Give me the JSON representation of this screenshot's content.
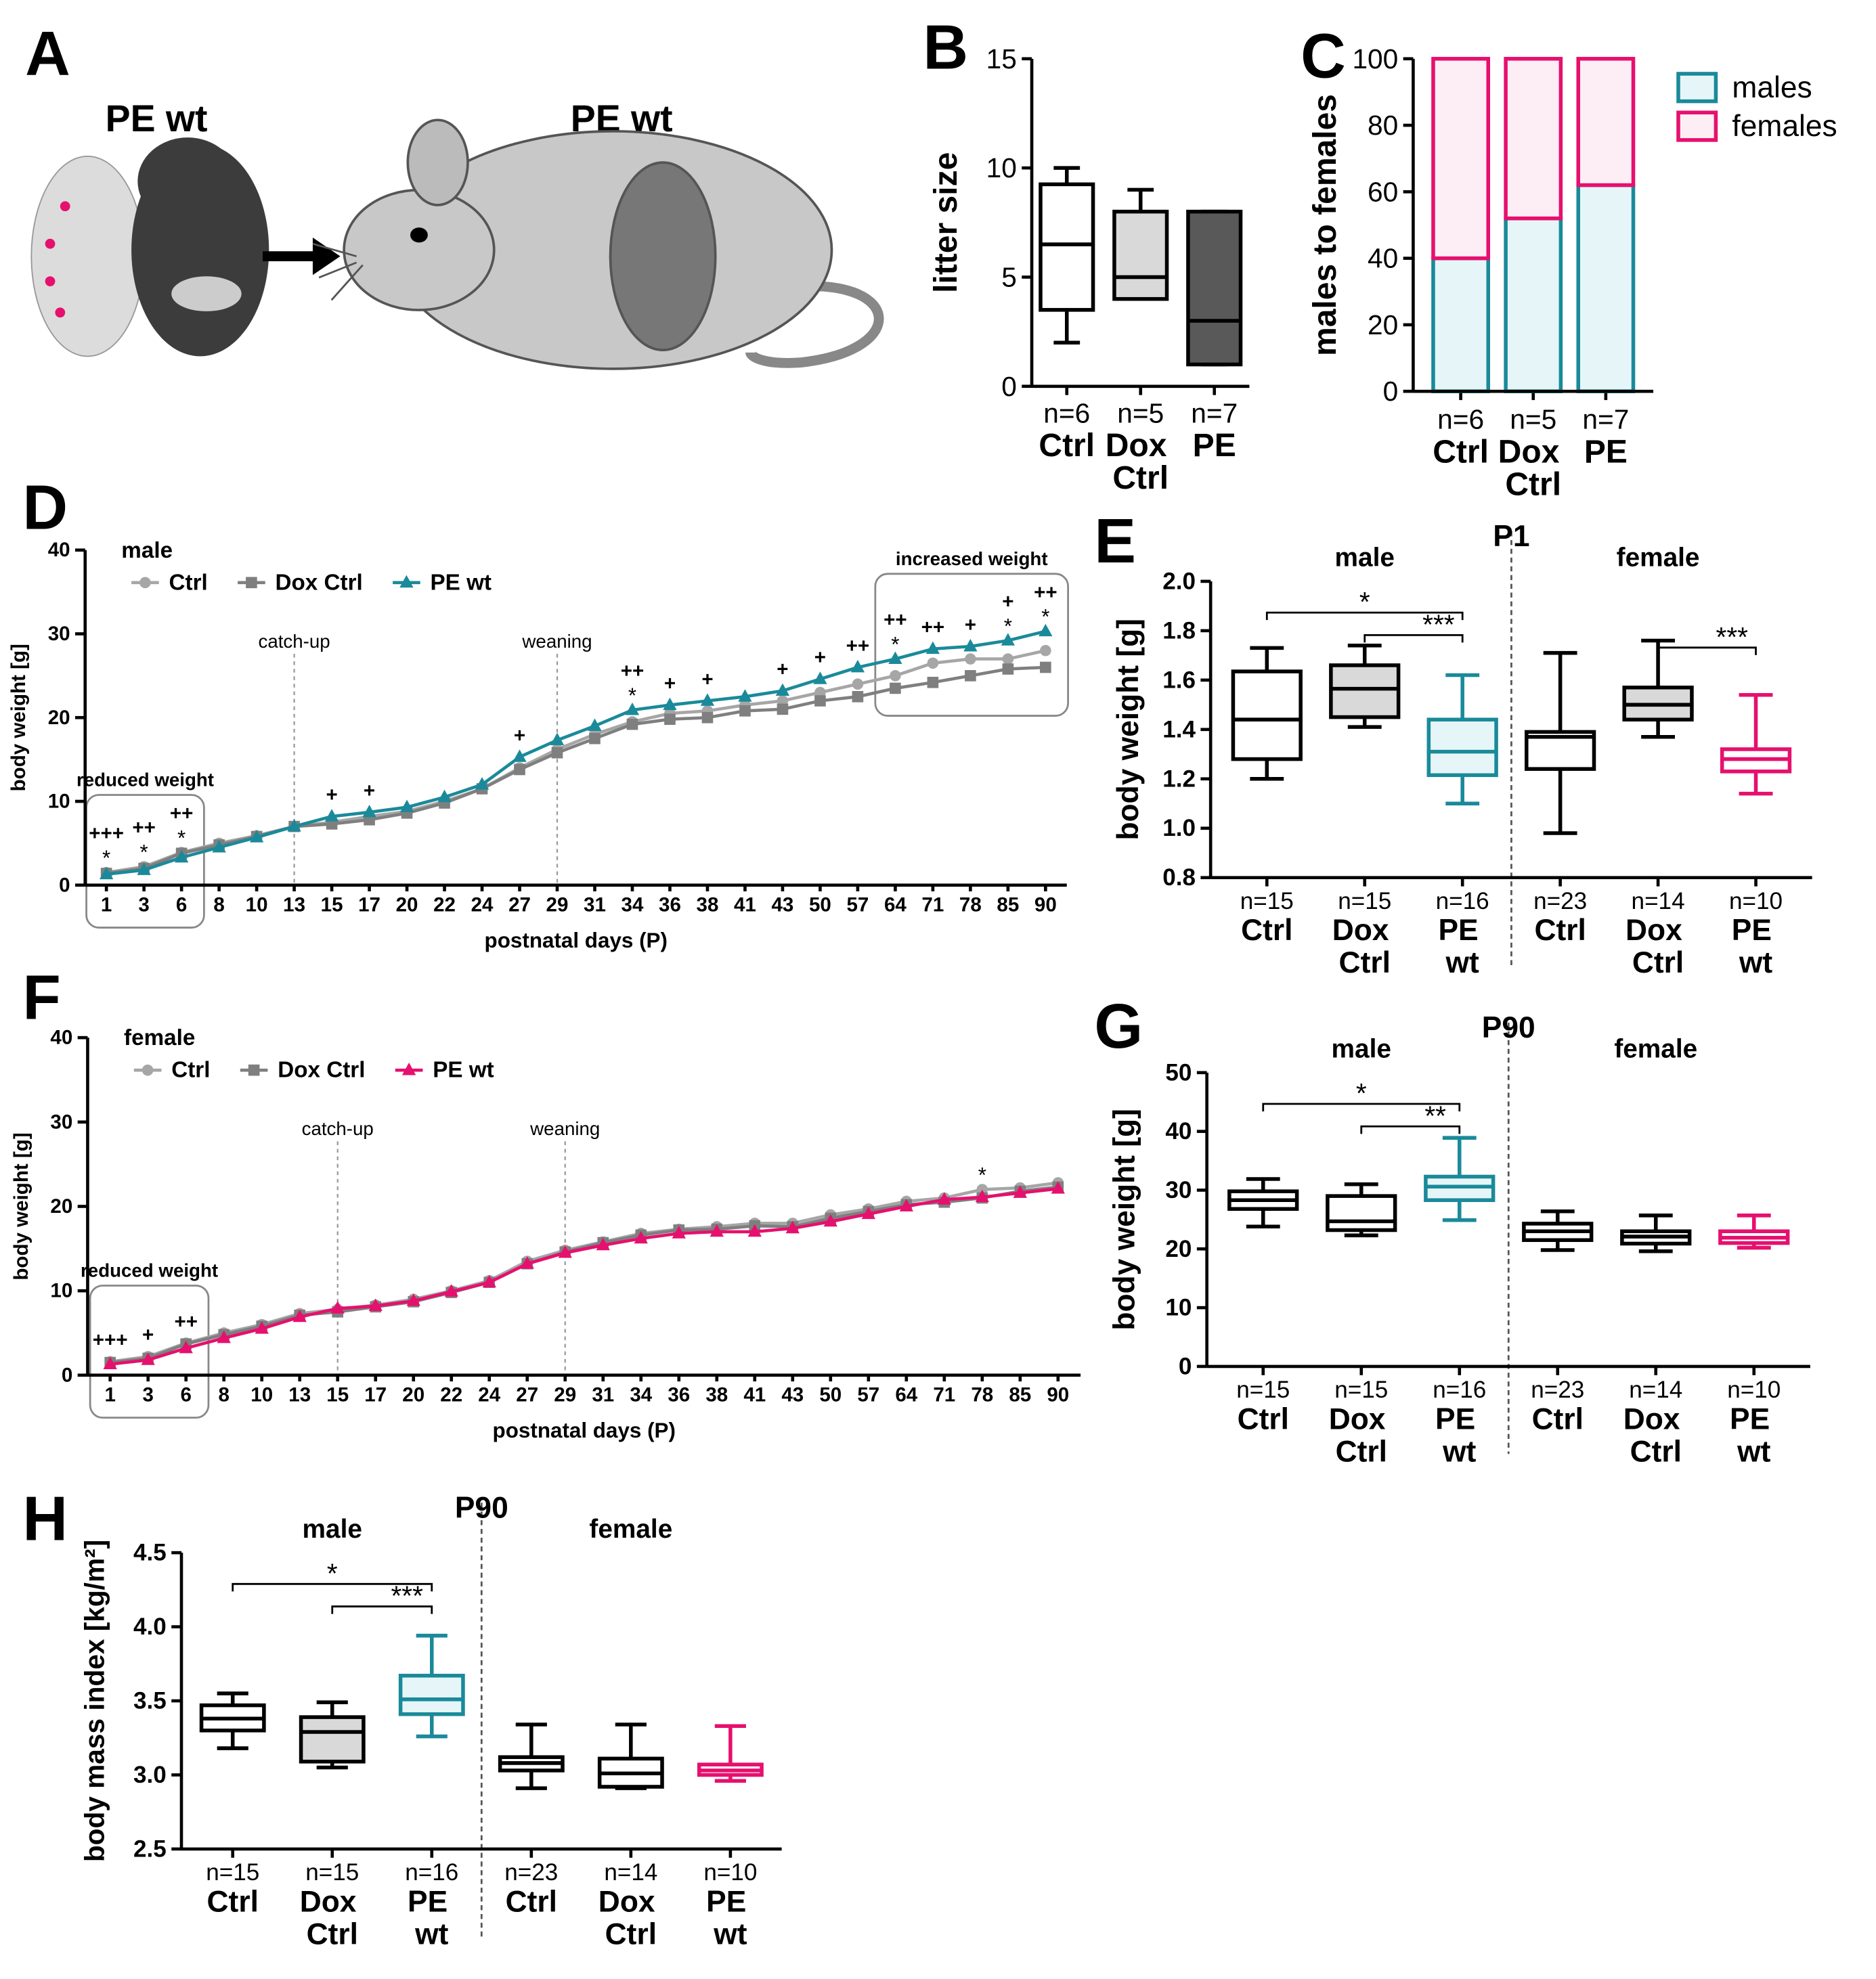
{
  "illustration": {
    "panel": "A",
    "labels": [
      "PE wt",
      "PE wt"
    ]
  },
  "chart_data": [
    {
      "type": "box",
      "panel": "B",
      "ylabel": "litter size",
      "ylim": [
        0,
        15
      ],
      "yticks": [
        0,
        5,
        10,
        15
      ],
      "categories": [
        "Ctrl",
        "Dox Ctrl",
        "PE"
      ],
      "n_labels": [
        "n=6",
        "n=5",
        "n=7"
      ],
      "boxes": [
        {
          "min": 2,
          "q1": 3.5,
          "median": 6.5,
          "q3": 9.25,
          "max": 10
        },
        {
          "min": 4,
          "q1": 4,
          "median": 5,
          "q3": 8,
          "max": 9
        },
        {
          "min": 1,
          "q1": 1,
          "median": 3,
          "q3": 8,
          "max": 8
        }
      ],
      "colors": [
        "#000000",
        "#000000",
        "#000000"
      ],
      "fills": [
        "#ffffff",
        "#d9d9d9",
        "#595959"
      ]
    },
    {
      "type": "stacked_bar",
      "panel": "C",
      "ylabel": "males to females",
      "ylim": [
        0,
        100
      ],
      "yticks": [
        0,
        20,
        40,
        60,
        80,
        100
      ],
      "categories": [
        "Ctrl",
        "Dox Ctrl",
        "PE"
      ],
      "n_labels": [
        "n=6",
        "n=5",
        "n=7"
      ],
      "series": [
        {
          "name": "males",
          "color": "#1a8a9a",
          "fill": "#e6f6f8",
          "values": [
            40,
            52,
            62
          ]
        },
        {
          "name": "females",
          "color": "#e6106e",
          "fill": "#fdeef5",
          "values": [
            60,
            48,
            38
          ]
        }
      ]
    },
    {
      "type": "line",
      "panel": "D",
      "legend_title": "male",
      "legend_title_color": "#1a8a9a",
      "ylabel": "body weight [g]",
      "xlabel": "postnatal days (P)",
      "ylim": [
        0,
        40
      ],
      "yticks": [
        0,
        10,
        20,
        30,
        40
      ],
      "categories": [
        1,
        3,
        6,
        8,
        10,
        13,
        15,
        17,
        20,
        22,
        24,
        27,
        29,
        31,
        34,
        36,
        38,
        41,
        43,
        50,
        57,
        64,
        71,
        78,
        85,
        90
      ],
      "series": [
        {
          "name": "Ctrl",
          "color": "#a6a6a6",
          "marker": "circle",
          "values": [
            1.5,
            2.2,
            3.9,
            5,
            5.9,
            7,
            7.5,
            8.2,
            8.8,
            10,
            11.5,
            14,
            16.2,
            18,
            19.5,
            20.5,
            20.8,
            21.5,
            22,
            23,
            24,
            25,
            26.5,
            27,
            27,
            28
          ]
        },
        {
          "name": "Dox Ctrl",
          "color": "#7f7f7f",
          "marker": "square",
          "values": [
            1.4,
            2,
            3.8,
            4.8,
            5.8,
            7,
            7.3,
            7.8,
            8.6,
            9.8,
            11.5,
            13.8,
            15.8,
            17.5,
            19.2,
            19.8,
            20,
            20.8,
            21,
            22,
            22.5,
            23.5,
            24.2,
            25,
            25.8,
            26
          ]
        },
        {
          "name": "PE wt",
          "color": "#1a8a9a",
          "marker": "triangle",
          "values": [
            1.3,
            1.8,
            3.3,
            4.5,
            5.7,
            7,
            8.2,
            8.7,
            9.3,
            10.5,
            12,
            15.3,
            17.3,
            19,
            20.9,
            21.5,
            22,
            22.5,
            23.2,
            24.6,
            26,
            27,
            28.2,
            28.5,
            29.2,
            30.3
          ]
        }
      ],
      "plus_labels": [
        "+++",
        "++",
        "++",
        null,
        null,
        null,
        "+",
        "+",
        null,
        null,
        null,
        "+",
        null,
        null,
        "++",
        "+",
        "+",
        null,
        "+",
        "+",
        "++",
        "++",
        "++",
        "+",
        "+",
        "++"
      ],
      "star_labels": [
        "*",
        "*",
        "*",
        null,
        null,
        null,
        null,
        null,
        null,
        null,
        null,
        null,
        null,
        null,
        "*",
        null,
        null,
        null,
        null,
        null,
        null,
        "*",
        null,
        null,
        "*",
        "*"
      ],
      "annotations": [
        {
          "kind": "vline",
          "text": "catch-up",
          "x": 13
        },
        {
          "kind": "vline",
          "text": "weaning",
          "x": 29
        },
        {
          "kind": "region",
          "text": "reduced weight",
          "from": 1,
          "to": 6
        },
        {
          "kind": "region",
          "text": "increased weight",
          "from": 64,
          "to": 90
        }
      ]
    },
    {
      "type": "box",
      "panel": "E",
      "title": "P1",
      "ylabel": "body weight [g]",
      "ylim": [
        0.8,
        2.0
      ],
      "yticks": [
        0.8,
        {
          "value": 1,
          "label": "1.0"
        },
        1.2,
        1.4,
        1.6,
        1.8,
        {
          "value": 2,
          "label": "2.0"
        }
      ],
      "groups": [
        {
          "name": "male",
          "color": "#1a8a9a"
        },
        {
          "name": "female",
          "color": "#e6106e"
        }
      ],
      "categories": [
        "Ctrl",
        "Dox Ctrl",
        "PE wt",
        "Ctrl",
        "Dox Ctrl",
        "PE wt"
      ],
      "n_labels": [
        "n=15",
        "n=15",
        "n=16",
        "n=23",
        "n=14",
        "n=10"
      ],
      "boxes": [
        {
          "min": 1.2,
          "q1": 1.28,
          "median": 1.44,
          "q3": 1.635,
          "max": 1.73
        },
        {
          "min": 1.41,
          "q1": 1.45,
          "median": 1.565,
          "q3": 1.66,
          "max": 1.74
        },
        {
          "min": 1.1,
          "q1": 1.215,
          "median": 1.31,
          "q3": 1.44,
          "max": 1.62
        },
        {
          "min": 0.98,
          "q1": 1.24,
          "median": 1.37,
          "q3": 1.39,
          "max": 1.71
        },
        {
          "min": 1.37,
          "q1": 1.44,
          "median": 1.5,
          "q3": 1.57,
          "max": 1.76
        },
        {
          "min": 1.14,
          "q1": 1.23,
          "median": 1.28,
          "q3": 1.32,
          "max": 1.54
        }
      ],
      "colors": [
        "#000000",
        "#000000",
        "#1a8a9a",
        "#000000",
        "#000000",
        "#e6106e"
      ],
      "fills": [
        "#ffffff",
        "#d9d9d9",
        "#e6f6f8",
        "#ffffff",
        "#d9d9d9",
        "#ffffff"
      ],
      "brackets": [
        {
          "from": 0,
          "to": 2,
          "label": "*"
        },
        {
          "from": 1,
          "to": 2,
          "label": "***"
        },
        {
          "from": 4,
          "to": 5,
          "label": "***"
        }
      ]
    },
    {
      "type": "line",
      "panel": "F",
      "legend_title": "female",
      "legend_title_color": "#e6106e",
      "ylabel": "body weight [g]",
      "xlabel": "postnatal days (P)",
      "ylim": [
        0,
        40
      ],
      "yticks": [
        0,
        10,
        20,
        30,
        40
      ],
      "categories": [
        1,
        3,
        6,
        8,
        10,
        13,
        15,
        17,
        20,
        22,
        24,
        27,
        29,
        31,
        34,
        36,
        38,
        41,
        43,
        50,
        57,
        64,
        71,
        78,
        85,
        90
      ],
      "series": [
        {
          "name": "Ctrl",
          "color": "#a6a6a6",
          "marker": "circle",
          "values": [
            1.6,
            2.2,
            3.8,
            5,
            6,
            7.3,
            7.8,
            8.3,
            9,
            10,
            11.2,
            13.5,
            14.8,
            15.8,
            16.8,
            17.3,
            17.6,
            18,
            18,
            19,
            19.7,
            20.6,
            21,
            22,
            22.2,
            22.8
          ]
        },
        {
          "name": "Dox Ctrl",
          "color": "#7f7f7f",
          "marker": "square",
          "values": [
            1.5,
            2,
            3.7,
            4.8,
            5.8,
            7.1,
            7.5,
            8.1,
            8.7,
            9.8,
            11,
            13.2,
            14.6,
            15.7,
            16.6,
            17.2,
            17.3,
            17.7,
            17.6,
            18.6,
            19.4,
            20.2,
            20.5,
            21,
            21.8,
            22.3
          ]
        },
        {
          "name": "PE wt",
          "color": "#e6106e",
          "marker": "triangle",
          "values": [
            1.3,
            1.8,
            3.2,
            4.4,
            5.5,
            6.9,
            7.9,
            8.2,
            8.8,
            9.9,
            11,
            13.2,
            14.5,
            15.4,
            16.2,
            16.8,
            17,
            17,
            17.4,
            18.2,
            19.1,
            20,
            20.8,
            21.1,
            21.6,
            22.1
          ]
        }
      ],
      "plus_labels": [
        "+++",
        "+",
        "++",
        null,
        null,
        null,
        null,
        null,
        null,
        null,
        null,
        null,
        null,
        null,
        null,
        null,
        null,
        null,
        null,
        null,
        null,
        null,
        null,
        null,
        null,
        null
      ],
      "star_labels": [
        null,
        null,
        null,
        null,
        null,
        null,
        null,
        null,
        null,
        null,
        null,
        null,
        null,
        null,
        null,
        null,
        null,
        null,
        null,
        null,
        null,
        null,
        null,
        "*",
        null,
        null
      ],
      "annotations": [
        {
          "kind": "vline",
          "text": "catch-up",
          "x": 15
        },
        {
          "kind": "vline",
          "text": "weaning",
          "x": 29
        },
        {
          "kind": "region",
          "text": "reduced weight",
          "from": 1,
          "to": 6
        }
      ]
    },
    {
      "type": "box",
      "panel": "G",
      "title": "P90",
      "ylabel": "body weight [g]",
      "ylim": [
        0,
        50
      ],
      "yticks": [
        0,
        10,
        20,
        30,
        40,
        50
      ],
      "groups": [
        {
          "name": "male",
          "color": "#1a8a9a"
        },
        {
          "name": "female",
          "color": "#e6106e"
        }
      ],
      "categories": [
        "Ctrl",
        "Dox Ctrl",
        "PE wt",
        "Ctrl",
        "Dox Ctrl",
        "PE wt"
      ],
      "n_labels": [
        "n=15",
        "n=15",
        "n=16",
        "n=23",
        "n=14",
        "n=10"
      ],
      "boxes": [
        {
          "min": 23.8,
          "q1": 26.8,
          "median": 28.3,
          "q3": 29.8,
          "max": 31.9
        },
        {
          "min": 22.3,
          "q1": 23.2,
          "median": 24.7,
          "q3": 29,
          "max": 31
        },
        {
          "min": 24.9,
          "q1": 28.3,
          "median": 30.6,
          "q3": 32.3,
          "max": 38.9
        },
        {
          "min": 19.8,
          "q1": 21.5,
          "median": 23,
          "q3": 24.3,
          "max": 26.4
        },
        {
          "min": 19.6,
          "q1": 20.9,
          "median": 22.1,
          "q3": 23,
          "max": 25.7
        },
        {
          "min": 20.2,
          "q1": 21,
          "median": 21.9,
          "q3": 23,
          "max": 25.7
        }
      ],
      "colors": [
        "#000000",
        "#000000",
        "#1a8a9a",
        "#000000",
        "#000000",
        "#e6106e"
      ],
      "fills": [
        "#ffffff",
        "#ffffff",
        "#e6f6f8",
        "#ffffff",
        "#ffffff",
        "#ffffff"
      ],
      "brackets": [
        {
          "from": 0,
          "to": 2,
          "label": "*"
        },
        {
          "from": 1,
          "to": 2,
          "label": "**"
        }
      ]
    },
    {
      "type": "box",
      "panel": "H",
      "title": "P90",
      "ylabel": "body mass index [kg/m²]",
      "ylim": [
        2.5,
        4.5
      ],
      "yticks": [
        2.5,
        {
          "value": 3,
          "label": "3.0"
        },
        3.5,
        {
          "value": 4,
          "label": "4.0"
        },
        4.5
      ],
      "groups": [
        {
          "name": "male",
          "color": "#1a8a9a"
        },
        {
          "name": "female",
          "color": "#e6106e"
        }
      ],
      "categories": [
        "Ctrl",
        "Dox Ctrl",
        "PE wt",
        "Ctrl",
        "Dox Ctrl",
        "PE wt"
      ],
      "n_labels": [
        "n=15",
        "n=15",
        "n=16",
        "n=23",
        "n=14",
        "n=10"
      ],
      "boxes": [
        {
          "min": 3.18,
          "q1": 3.3,
          "median": 3.38,
          "q3": 3.47,
          "max": 3.55
        },
        {
          "min": 3.05,
          "q1": 3.09,
          "median": 3.29,
          "q3": 3.39,
          "max": 3.49
        },
        {
          "min": 3.26,
          "q1": 3.41,
          "median": 3.51,
          "q3": 3.67,
          "max": 3.94
        },
        {
          "min": 2.91,
          "q1": 3.03,
          "median": 3.08,
          "q3": 3.12,
          "max": 3.34
        },
        {
          "min": 2.91,
          "q1": 2.92,
          "median": 3.01,
          "q3": 3.11,
          "max": 3.34
        },
        {
          "min": 2.96,
          "q1": 3,
          "median": 3.03,
          "q3": 3.07,
          "max": 3.33
        }
      ],
      "colors": [
        "#000000",
        "#000000",
        "#1a8a9a",
        "#000000",
        "#000000",
        "#e6106e"
      ],
      "fills": [
        "#ffffff",
        "#d9d9d9",
        "#e6f6f8",
        "#ffffff",
        "#ffffff",
        "#ffffff"
      ],
      "brackets": [
        {
          "from": 0,
          "to": 2,
          "label": "*"
        },
        {
          "from": 1,
          "to": 2,
          "label": "***"
        }
      ]
    }
  ]
}
